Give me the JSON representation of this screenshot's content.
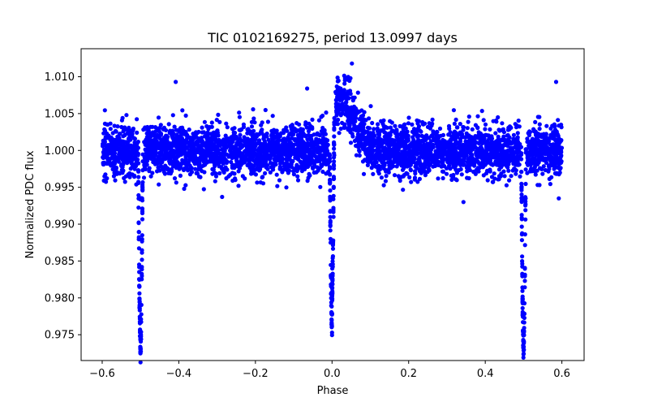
{
  "chart_data": {
    "type": "scatter",
    "title": "TIC 0102169275, period 13.0997 days",
    "xlabel": "Phase",
    "ylabel": "Normalized PDC flux",
    "xlim": [
      -0.655,
      0.658
    ],
    "ylim": [
      0.9715,
      1.0138
    ],
    "xticks": [
      -0.6,
      -0.4,
      -0.2,
      0.0,
      0.2,
      0.4,
      0.6
    ],
    "xtick_labels": [
      "−0.6",
      "−0.4",
      "−0.2",
      "0.0",
      "0.2",
      "0.4",
      "0.6"
    ],
    "yticks": [
      0.975,
      0.98,
      0.985,
      0.99,
      0.995,
      1.0,
      1.005,
      1.01
    ],
    "ytick_labels": [
      "0.975",
      "0.980",
      "0.985",
      "0.990",
      "0.995",
      "1.000",
      "1.005",
      "1.010"
    ],
    "grid": false,
    "marker_color": "#0000ff",
    "series": [
      {
        "phase_range": [
          -0.6,
          0.6
        ],
        "baseline_flux": 1.0,
        "scatter_band": [
          0.9955,
          1.0055
        ],
        "eclipses": [
          {
            "phase": -0.5,
            "min_flux": 0.973
          },
          {
            "phase": 0.0,
            "min_flux": 0.9755
          },
          {
            "phase": 0.5,
            "min_flux": 0.973
          }
        ],
        "bump": {
          "phase_range": [
            0.0,
            0.06
          ],
          "max_flux": 1.0118
        },
        "outliers": [
          {
            "x": -0.408,
            "y": 1.0093
          },
          {
            "x": -0.386,
            "y": 0.9948
          },
          {
            "x": -0.287,
            "y": 0.9937
          },
          {
            "x": -0.065,
            "y": 1.0084
          },
          {
            "x": 0.052,
            "y": 1.0118
          },
          {
            "x": 0.048,
            "y": 1.0098
          },
          {
            "x": 0.585,
            "y": 1.0093
          },
          {
            "x": 0.343,
            "y": 0.993
          }
        ]
      }
    ]
  }
}
